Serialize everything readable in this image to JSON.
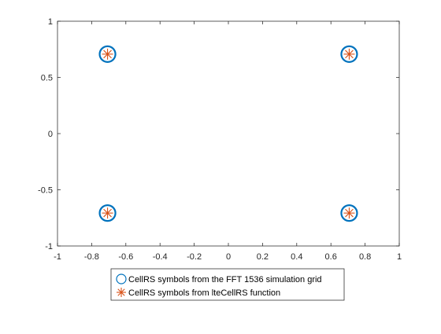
{
  "chart_data": {
    "type": "scatter",
    "title": "",
    "xlabel": "",
    "ylabel": "",
    "xlim": [
      -1,
      1
    ],
    "ylim": [
      -1,
      1
    ],
    "xticks": [
      -1,
      -0.8,
      -0.6,
      -0.4,
      -0.2,
      0,
      0.2,
      0.4,
      0.6,
      0.8,
      1
    ],
    "yticks": [
      -1,
      -0.5,
      0,
      0.5,
      1
    ],
    "xtick_labels": [
      "-1",
      "-0.8",
      "-0.6",
      "-0.4",
      "-0.2",
      "0",
      "0.2",
      "0.4",
      "0.6",
      "0.8",
      "1"
    ],
    "ytick_labels": [
      "-1",
      "-0.5",
      "0",
      "0.5",
      "1"
    ],
    "grid": false,
    "legend_position": "bottom-center-outside",
    "series": [
      {
        "name": "CellRS symbols from the FFT 1536 simulation grid",
        "marker": "circle",
        "color": "#0072BD",
        "points": [
          {
            "x": -0.7071,
            "y": 0.7071
          },
          {
            "x": 0.7071,
            "y": 0.7071
          },
          {
            "x": -0.7071,
            "y": -0.7071
          },
          {
            "x": 0.7071,
            "y": -0.7071
          }
        ]
      },
      {
        "name": "CellRS symbols from lteCellRS function",
        "marker": "asterisk",
        "color": "#D95319",
        "points": [
          {
            "x": -0.7071,
            "y": 0.7071
          },
          {
            "x": 0.7071,
            "y": 0.7071
          },
          {
            "x": -0.7071,
            "y": -0.7071
          },
          {
            "x": 0.7071,
            "y": -0.7071
          }
        ]
      }
    ]
  }
}
